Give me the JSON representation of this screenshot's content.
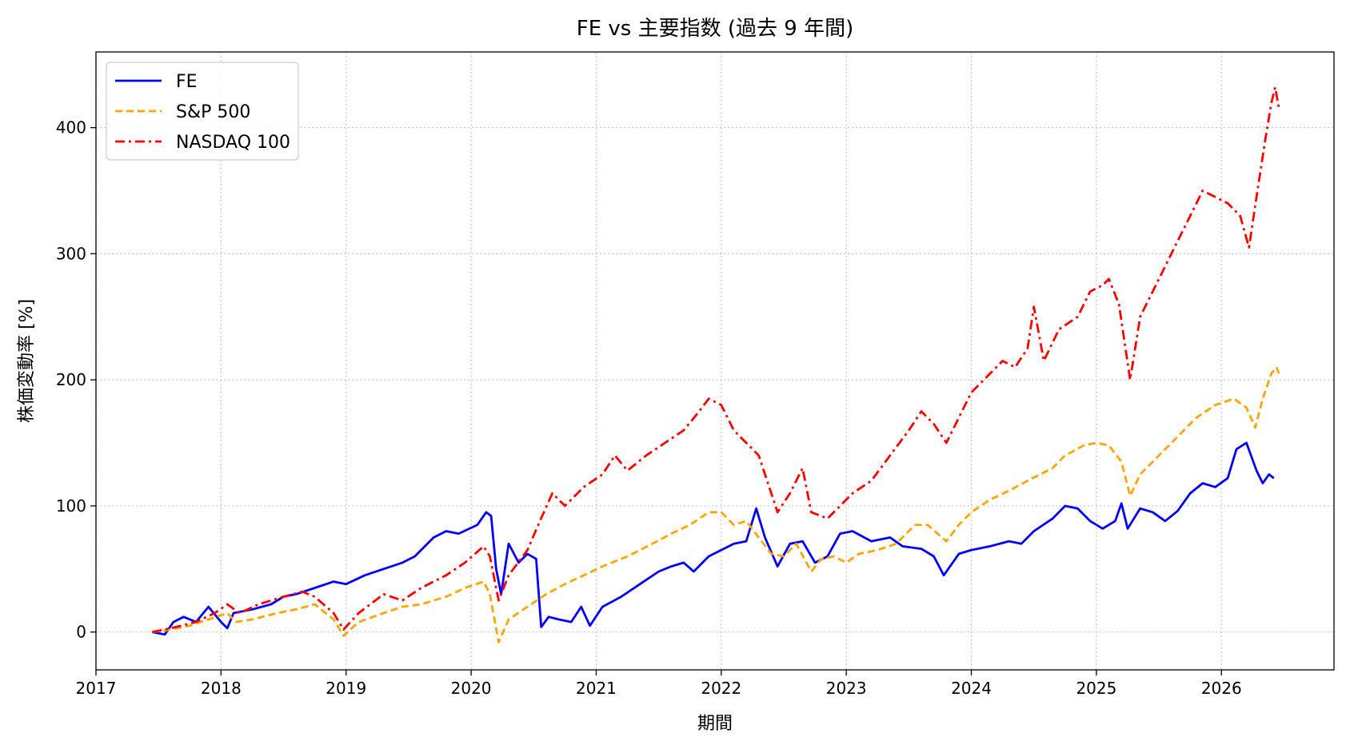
{
  "chart_data": {
    "type": "line",
    "title": "FE vs 主要指数 (過去 9 年間)",
    "xlabel": "期間",
    "ylabel": "株価変動率 [%]",
    "xlim": [
      2017.0,
      2026.9
    ],
    "ylim": [
      -30,
      460
    ],
    "xticks": [
      2017,
      2018,
      2019,
      2020,
      2021,
      2022,
      2023,
      2024,
      2025,
      2026
    ],
    "xtick_labels": [
      "2017",
      "2018",
      "2019",
      "2020",
      "2021",
      "2022",
      "2023",
      "2024",
      "2025",
      "2026"
    ],
    "yticks": [
      0,
      100,
      200,
      300,
      400
    ],
    "ytick_labels": [
      "0",
      "100",
      "200",
      "300",
      "400"
    ],
    "grid": true,
    "legend_position": "top-left",
    "series": [
      {
        "name": "FE",
        "color": "#0000ff",
        "dash": "solid",
        "points": [
          [
            2017.45,
            0
          ],
          [
            2017.55,
            -2
          ],
          [
            2017.62,
            8
          ],
          [
            2017.7,
            12
          ],
          [
            2017.8,
            8
          ],
          [
            2017.9,
            20
          ],
          [
            2018.0,
            8
          ],
          [
            2018.05,
            3
          ],
          [
            2018.1,
            15
          ],
          [
            2018.25,
            18
          ],
          [
            2018.4,
            22
          ],
          [
            2018.5,
            28
          ],
          [
            2018.6,
            30
          ],
          [
            2018.75,
            35
          ],
          [
            2018.9,
            40
          ],
          [
            2019.0,
            38
          ],
          [
            2019.15,
            45
          ],
          [
            2019.3,
            50
          ],
          [
            2019.45,
            55
          ],
          [
            2019.55,
            60
          ],
          [
            2019.7,
            75
          ],
          [
            2019.8,
            80
          ],
          [
            2019.9,
            78
          ],
          [
            2020.05,
            85
          ],
          [
            2020.12,
            95
          ],
          [
            2020.16,
            92
          ],
          [
            2020.2,
            50
          ],
          [
            2020.24,
            30
          ],
          [
            2020.3,
            70
          ],
          [
            2020.38,
            55
          ],
          [
            2020.45,
            62
          ],
          [
            2020.52,
            58
          ],
          [
            2020.56,
            4
          ],
          [
            2020.62,
            12
          ],
          [
            2020.7,
            10
          ],
          [
            2020.8,
            8
          ],
          [
            2020.88,
            20
          ],
          [
            2020.95,
            5
          ],
          [
            2021.05,
            20
          ],
          [
            2021.2,
            28
          ],
          [
            2021.35,
            38
          ],
          [
            2021.5,
            48
          ],
          [
            2021.6,
            52
          ],
          [
            2021.7,
            55
          ],
          [
            2021.78,
            48
          ],
          [
            2021.9,
            60
          ],
          [
            2022.0,
            65
          ],
          [
            2022.1,
            70
          ],
          [
            2022.2,
            72
          ],
          [
            2022.28,
            98
          ],
          [
            2022.35,
            75
          ],
          [
            2022.45,
            52
          ],
          [
            2022.55,
            70
          ],
          [
            2022.65,
            72
          ],
          [
            2022.75,
            55
          ],
          [
            2022.85,
            60
          ],
          [
            2022.95,
            78
          ],
          [
            2023.05,
            80
          ],
          [
            2023.2,
            72
          ],
          [
            2023.35,
            75
          ],
          [
            2023.45,
            68
          ],
          [
            2023.6,
            66
          ],
          [
            2023.7,
            60
          ],
          [
            2023.78,
            45
          ],
          [
            2023.9,
            62
          ],
          [
            2024.0,
            65
          ],
          [
            2024.15,
            68
          ],
          [
            2024.3,
            72
          ],
          [
            2024.4,
            70
          ],
          [
            2024.5,
            80
          ],
          [
            2024.65,
            90
          ],
          [
            2024.75,
            100
          ],
          [
            2024.85,
            98
          ],
          [
            2024.95,
            88
          ],
          [
            2025.05,
            82
          ],
          [
            2025.15,
            88
          ],
          [
            2025.2,
            102
          ],
          [
            2025.25,
            82
          ],
          [
            2025.35,
            98
          ],
          [
            2025.45,
            95
          ],
          [
            2025.55,
            88
          ],
          [
            2025.65,
            96
          ],
          [
            2025.75,
            110
          ],
          [
            2025.85,
            118
          ],
          [
            2025.95,
            115
          ],
          [
            2026.05,
            122
          ],
          [
            2026.12,
            145
          ],
          [
            2026.2,
            150
          ],
          [
            2026.28,
            128
          ],
          [
            2026.33,
            118
          ],
          [
            2026.38,
            125
          ],
          [
            2026.42,
            122
          ]
        ]
      },
      {
        "name": "S&P 500",
        "color": "#ffa500",
        "dash": "dashed",
        "points": [
          [
            2017.45,
            0
          ],
          [
            2017.6,
            2
          ],
          [
            2017.75,
            5
          ],
          [
            2017.9,
            10
          ],
          [
            2018.05,
            15
          ],
          [
            2018.12,
            8
          ],
          [
            2018.25,
            10
          ],
          [
            2018.45,
            15
          ],
          [
            2018.6,
            18
          ],
          [
            2018.75,
            22
          ],
          [
            2018.9,
            10
          ],
          [
            2018.98,
            -3
          ],
          [
            2019.1,
            8
          ],
          [
            2019.3,
            15
          ],
          [
            2019.45,
            20
          ],
          [
            2019.6,
            22
          ],
          [
            2019.8,
            28
          ],
          [
            2019.95,
            35
          ],
          [
            2020.1,
            40
          ],
          [
            2020.15,
            30
          ],
          [
            2020.22,
            -8
          ],
          [
            2020.3,
            10
          ],
          [
            2020.45,
            20
          ],
          [
            2020.6,
            30
          ],
          [
            2020.75,
            38
          ],
          [
            2020.9,
            45
          ],
          [
            2021.05,
            52
          ],
          [
            2021.25,
            60
          ],
          [
            2021.45,
            70
          ],
          [
            2021.6,
            78
          ],
          [
            2021.75,
            85
          ],
          [
            2021.9,
            95
          ],
          [
            2022.0,
            95
          ],
          [
            2022.1,
            85
          ],
          [
            2022.2,
            88
          ],
          [
            2022.3,
            75
          ],
          [
            2022.4,
            62
          ],
          [
            2022.5,
            60
          ],
          [
            2022.6,
            70
          ],
          [
            2022.72,
            48
          ],
          [
            2022.8,
            58
          ],
          [
            2022.9,
            60
          ],
          [
            2023.0,
            55
          ],
          [
            2023.1,
            62
          ],
          [
            2023.25,
            65
          ],
          [
            2023.4,
            70
          ],
          [
            2023.55,
            85
          ],
          [
            2023.65,
            85
          ],
          [
            2023.8,
            72
          ],
          [
            2023.9,
            85
          ],
          [
            2024.0,
            95
          ],
          [
            2024.15,
            105
          ],
          [
            2024.3,
            112
          ],
          [
            2024.45,
            120
          ],
          [
            2024.55,
            125
          ],
          [
            2024.65,
            130
          ],
          [
            2024.75,
            140
          ],
          [
            2024.9,
            148
          ],
          [
            2025.0,
            150
          ],
          [
            2025.1,
            148
          ],
          [
            2025.2,
            135
          ],
          [
            2025.27,
            108
          ],
          [
            2025.35,
            125
          ],
          [
            2025.5,
            140
          ],
          [
            2025.65,
            155
          ],
          [
            2025.8,
            170
          ],
          [
            2025.95,
            180
          ],
          [
            2026.1,
            185
          ],
          [
            2026.2,
            178
          ],
          [
            2026.27,
            162
          ],
          [
            2026.33,
            185
          ],
          [
            2026.4,
            205
          ],
          [
            2026.44,
            210
          ],
          [
            2026.46,
            205
          ]
        ]
      },
      {
        "name": "NASDAQ 100",
        "color": "#ff0000",
        "dash": "dashdot",
        "points": [
          [
            2017.45,
            0
          ],
          [
            2017.6,
            3
          ],
          [
            2017.8,
            8
          ],
          [
            2017.95,
            15
          ],
          [
            2018.05,
            22
          ],
          [
            2018.15,
            15
          ],
          [
            2018.3,
            22
          ],
          [
            2018.5,
            28
          ],
          [
            2018.65,
            32
          ],
          [
            2018.75,
            28
          ],
          [
            2018.9,
            15
          ],
          [
            2018.98,
            2
          ],
          [
            2019.1,
            15
          ],
          [
            2019.3,
            30
          ],
          [
            2019.45,
            25
          ],
          [
            2019.6,
            35
          ],
          [
            2019.8,
            45
          ],
          [
            2019.95,
            55
          ],
          [
            2020.1,
            68
          ],
          [
            2020.15,
            60
          ],
          [
            2020.22,
            25
          ],
          [
            2020.3,
            45
          ],
          [
            2020.45,
            65
          ],
          [
            2020.55,
            88
          ],
          [
            2020.65,
            110
          ],
          [
            2020.75,
            100
          ],
          [
            2020.9,
            115
          ],
          [
            2021.05,
            125
          ],
          [
            2021.15,
            140
          ],
          [
            2021.25,
            128
          ],
          [
            2021.4,
            140
          ],
          [
            2021.55,
            150
          ],
          [
            2021.7,
            160
          ],
          [
            2021.8,
            172
          ],
          [
            2021.9,
            185
          ],
          [
            2022.0,
            180
          ],
          [
            2022.1,
            160
          ],
          [
            2022.2,
            150
          ],
          [
            2022.3,
            140
          ],
          [
            2022.4,
            110
          ],
          [
            2022.45,
            95
          ],
          [
            2022.55,
            110
          ],
          [
            2022.65,
            130
          ],
          [
            2022.72,
            95
          ],
          [
            2022.85,
            90
          ],
          [
            2022.95,
            100
          ],
          [
            2023.05,
            110
          ],
          [
            2023.2,
            120
          ],
          [
            2023.35,
            140
          ],
          [
            2023.5,
            160
          ],
          [
            2023.6,
            175
          ],
          [
            2023.7,
            165
          ],
          [
            2023.8,
            150
          ],
          [
            2023.9,
            170
          ],
          [
            2024.0,
            190
          ],
          [
            2024.15,
            205
          ],
          [
            2024.25,
            215
          ],
          [
            2024.35,
            210
          ],
          [
            2024.45,
            225
          ],
          [
            2024.5,
            258
          ],
          [
            2024.58,
            215
          ],
          [
            2024.7,
            240
          ],
          [
            2024.85,
            250
          ],
          [
            2024.95,
            270
          ],
          [
            2025.05,
            275
          ],
          [
            2025.1,
            280
          ],
          [
            2025.18,
            260
          ],
          [
            2025.27,
            200
          ],
          [
            2025.35,
            250
          ],
          [
            2025.45,
            270
          ],
          [
            2025.55,
            290
          ],
          [
            2025.65,
            310
          ],
          [
            2025.75,
            330
          ],
          [
            2025.85,
            350
          ],
          [
            2025.95,
            345
          ],
          [
            2026.05,
            340
          ],
          [
            2026.15,
            330
          ],
          [
            2026.22,
            305
          ],
          [
            2026.28,
            345
          ],
          [
            2026.35,
            390
          ],
          [
            2026.4,
            420
          ],
          [
            2026.43,
            432
          ],
          [
            2026.46,
            415
          ]
        ]
      }
    ]
  }
}
